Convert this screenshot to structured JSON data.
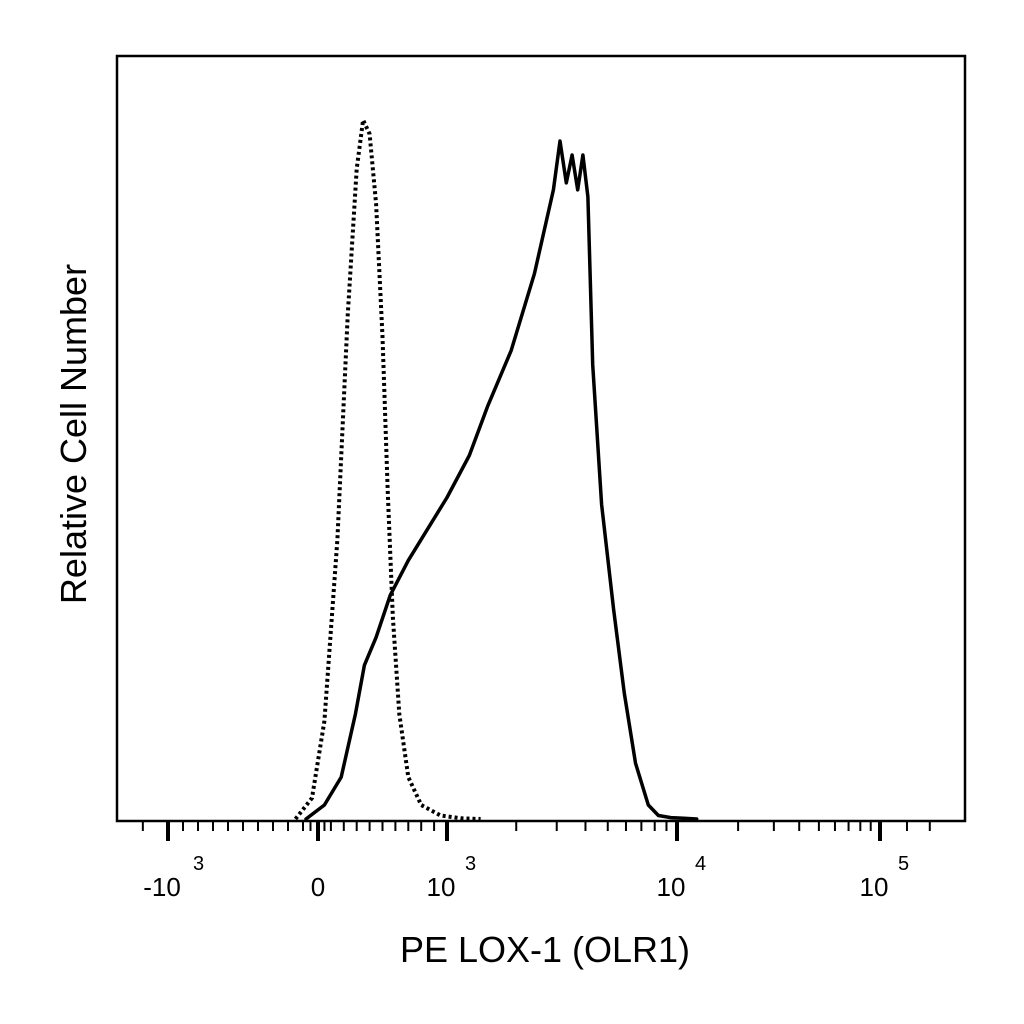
{
  "chart_data": {
    "type": "line",
    "title": "",
    "xlabel": "PE LOX-1 (OLR1)",
    "ylabel": "Relative Cell Number",
    "x_scale": "biexponential",
    "xlim": [
      -2000,
      150000
    ],
    "ylim": [
      0,
      100
    ],
    "grid": false,
    "legend": "none",
    "x_ticks": [
      {
        "value": -1000,
        "base": "-10",
        "exp": "3"
      },
      {
        "value": 0,
        "base": "0",
        "exp": ""
      },
      {
        "value": 1000,
        "base": "10",
        "exp": "3"
      },
      {
        "value": 10000,
        "base": "10",
        "exp": "4"
      },
      {
        "value": 100000,
        "base": "10",
        "exp": "5"
      }
    ],
    "series": [
      {
        "style": "dotted",
        "color": "#000000",
        "x": [
          -150,
          -40,
          50,
          150,
          230,
          300,
          350,
          400,
          450,
          500,
          540,
          580,
          630,
          700,
          800,
          950,
          1150,
          1400
        ],
        "y": [
          0,
          3,
          14,
          40,
          72,
          93,
          100,
          98,
          88,
          69,
          47,
          29,
          15,
          6,
          2,
          0.5,
          0.1,
          0
        ]
      },
      {
        "style": "solid",
        "color": "#000000",
        "x": [
          -80,
          50,
          180,
          290,
          360,
          450,
          560,
          700,
          800,
          1000,
          1250,
          1500,
          1900,
          2400,
          2900,
          3100,
          3300,
          3500,
          3700,
          3900,
          4100,
          4300,
          4700,
          5300,
          5900,
          6600,
          7500,
          8300,
          9400,
          10800,
          12500
        ],
        "y": [
          0,
          2,
          6,
          15,
          22,
          26,
          32,
          37,
          40,
          46,
          52,
          59,
          67,
          78,
          90,
          97,
          91,
          95,
          90,
          95,
          89,
          65,
          45,
          30,
          18,
          8,
          2,
          0.5,
          0.2,
          0.1,
          0
        ]
      }
    ]
  }
}
